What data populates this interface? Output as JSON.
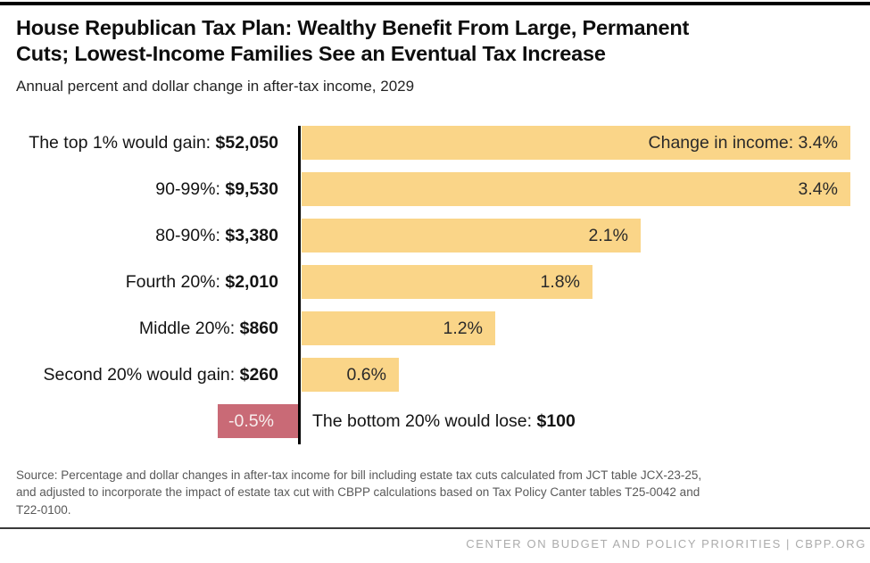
{
  "header": {
    "title_lines": [
      "House Republican Tax Plan: Wealthy Benefit From Large, Permanent",
      "Cuts; Lowest-Income Families See an Eventual Tax Increase"
    ],
    "subtitle": "Annual percent and dollar change in after-tax income, 2029"
  },
  "chart_data": {
    "type": "bar",
    "orientation": "horizontal",
    "xlabel": "",
    "ylabel": "",
    "title": "Annual percent and dollar change in after-tax income, 2029",
    "axis_range": [
      -0.5,
      3.4
    ],
    "grid": false,
    "legend": "none",
    "unit": "percent change in after-tax income",
    "categories": [
      "Top 1%",
      "90-99%",
      "80-90%",
      "Fourth 20%",
      "Middle 20%",
      "Second 20%",
      "Bottom 20%"
    ],
    "values": [
      3.4,
      3.4,
      2.1,
      1.8,
      1.2,
      0.6,
      -0.5
    ],
    "dollar_changes": [
      "$52,050",
      "$9,530",
      "$3,380",
      "$2,010",
      "$860",
      "$260",
      "$100"
    ],
    "rows": [
      {
        "label_prefix": "The top 1% would gain: ",
        "dollar": "$52,050",
        "value": 3.4,
        "bar_label": "Change in income: 3.4%"
      },
      {
        "label_prefix": "90-99%: ",
        "dollar": "$9,530",
        "value": 3.4,
        "bar_label": "3.4%"
      },
      {
        "label_prefix": "80-90%: ",
        "dollar": "$3,380",
        "value": 2.1,
        "bar_label": "2.1%"
      },
      {
        "label_prefix": "Fourth 20%: ",
        "dollar": "$2,010",
        "value": 1.8,
        "bar_label": "1.8%"
      },
      {
        "label_prefix": "Middle 20%: ",
        "dollar": "$860",
        "value": 1.2,
        "bar_label": "1.2%"
      },
      {
        "label_prefix": "Second 20% would gain: ",
        "dollar": "$260",
        "value": 0.6,
        "bar_label": "0.6%"
      },
      {
        "label_prefix": "The bottom 20% would lose: ",
        "dollar": "$100",
        "value": -0.5,
        "bar_label": "-0.5%"
      }
    ],
    "colors": {
      "positive_bar": "#FAD588",
      "negative_bar": "#C96A76",
      "axis": "#000000"
    }
  },
  "source": {
    "lines": [
      "Source: Percentage and dollar changes in after-tax income for bill including estate tax cuts calculated from JCT table JCX-23-25,",
      "and adjusted to incorporate the impact of estate tax cut with CBPP calculations based on Tax Policy Canter tables T25-0042 and",
      "T22-0100."
    ]
  },
  "footer": {
    "text": "CENTER ON BUDGET AND POLICY PRIORITIES | CBPP.ORG"
  }
}
